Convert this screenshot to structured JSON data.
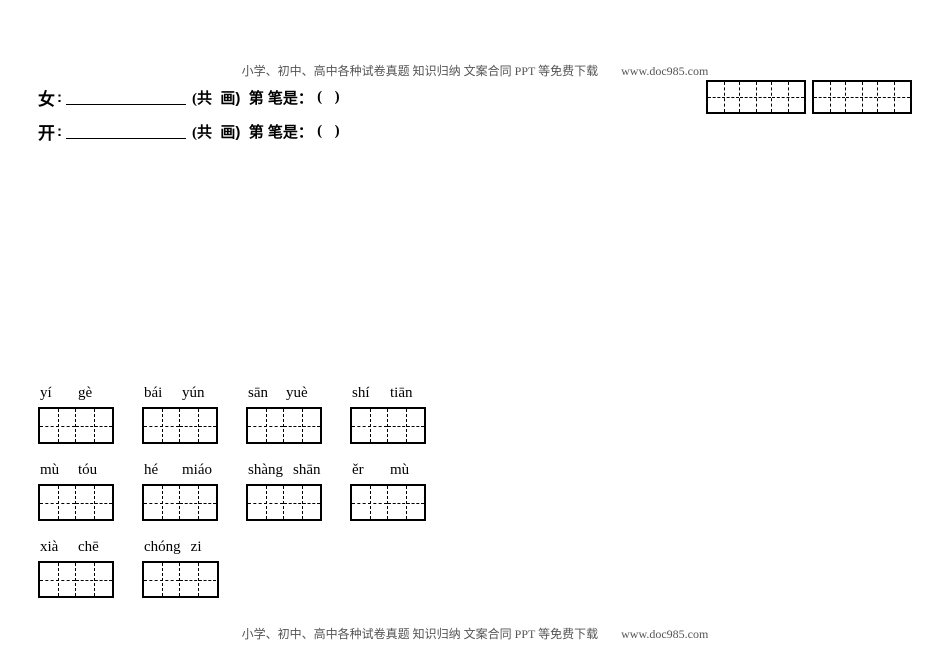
{
  "header_footer": {
    "text": "小学、初中、高中各种试卷真题  知识归纳  文案合同  PPT 等免费下载",
    "link": "www.doc985.com"
  },
  "stroke_questions": [
    {
      "char": "女",
      "gong": "(共",
      "hua": "画)",
      "di": "第",
      "bishi": "笔是：",
      "open": "(",
      "close": ")"
    },
    {
      "char": "开",
      "gong": "(共",
      "hua": "画)",
      "di": "第",
      "bishi": "笔是：",
      "open": "(",
      "close": ")"
    }
  ],
  "top_right_boxes": {
    "groups": 2,
    "cells_per_group": 3
  },
  "word_grid": {
    "rows": [
      [
        {
          "pinyin": [
            "yí",
            "gè"
          ]
        },
        {
          "pinyin": [
            "bái",
            "yún"
          ]
        },
        {
          "pinyin": [
            "sān",
            "yuè"
          ]
        },
        {
          "pinyin": [
            "shí",
            "tiān"
          ]
        }
      ],
      [
        {
          "pinyin": [
            "mù",
            "tóu"
          ]
        },
        {
          "pinyin": [
            "hé",
            "miáo"
          ]
        },
        {
          "pinyin": [
            "shàng",
            "shān"
          ]
        },
        {
          "pinyin": [
            "ěr",
            "mù"
          ]
        }
      ],
      [
        {
          "pinyin": [
            "xià",
            "chē"
          ]
        },
        {
          "pinyin": [
            "chóng",
            "zi"
          ]
        }
      ]
    ]
  },
  "styling": {
    "page_bg": "#ffffff",
    "text_color": "#000000",
    "header_color": "#555555",
    "border_color": "#000000",
    "dash_style": "dashed",
    "box_cell_w": 36,
    "box_cell_h": 33,
    "top_cell_w": 32,
    "top_cell_h": 30
  }
}
